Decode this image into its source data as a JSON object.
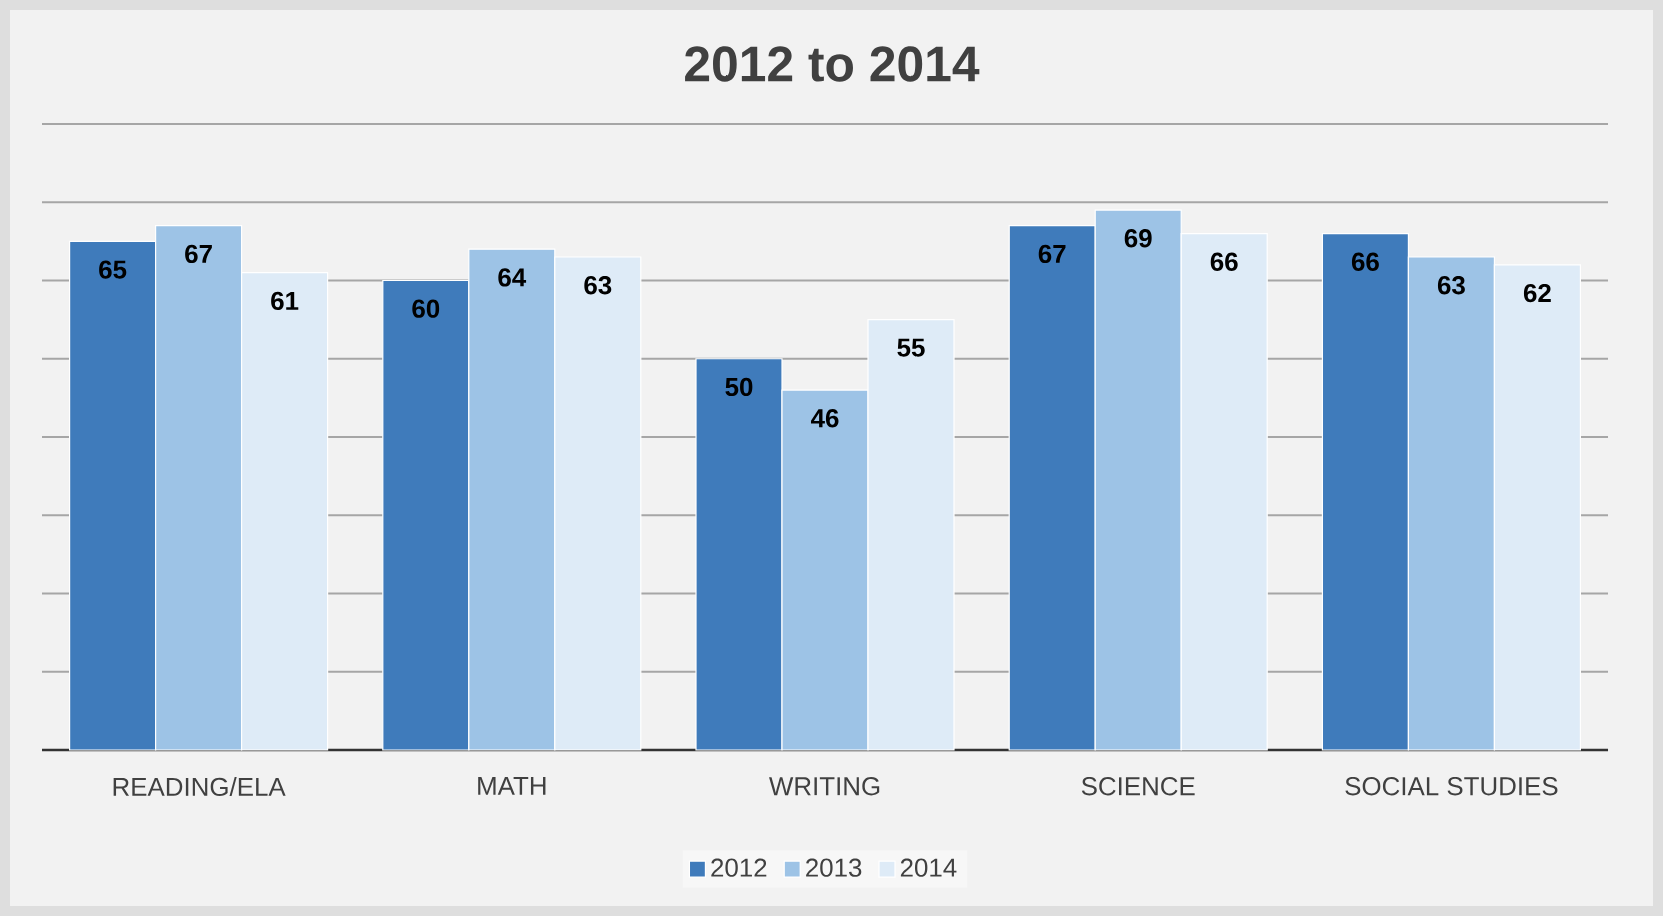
{
  "chart_data": {
    "type": "bar",
    "title": "2012 to 2014",
    "categories": [
      "READING/ELA",
      "MATH",
      "WRITING",
      "SCIENCE",
      "SOCIAL STUDIES"
    ],
    "series": [
      {
        "name": "2012",
        "color": "#3f7bbb",
        "values": [
          65,
          60,
          50,
          67,
          66
        ]
      },
      {
        "name": "2013",
        "color": "#9dc3e6",
        "values": [
          67,
          64,
          46,
          69,
          63
        ]
      },
      {
        "name": "2014",
        "color": "#deebf7",
        "values": [
          61,
          63,
          55,
          66,
          62
        ]
      }
    ],
    "ylim": [
      0,
      80
    ],
    "yticks": [
      {
        "value": 0,
        "label": null
      },
      {
        "value": 10,
        "label": null
      },
      {
        "value": 20,
        "label": null
      },
      {
        "value": 30,
        "label": null
      },
      {
        "value": 40,
        "label": null
      },
      {
        "value": 50,
        "label": null
      },
      {
        "value": 60,
        "label": null
      },
      {
        "value": 70,
        "label": null
      },
      {
        "value": 80,
        "label": null
      }
    ],
    "tick_labels": "x",
    "grid": "y",
    "legend": "bottom",
    "data_labels": true
  }
}
